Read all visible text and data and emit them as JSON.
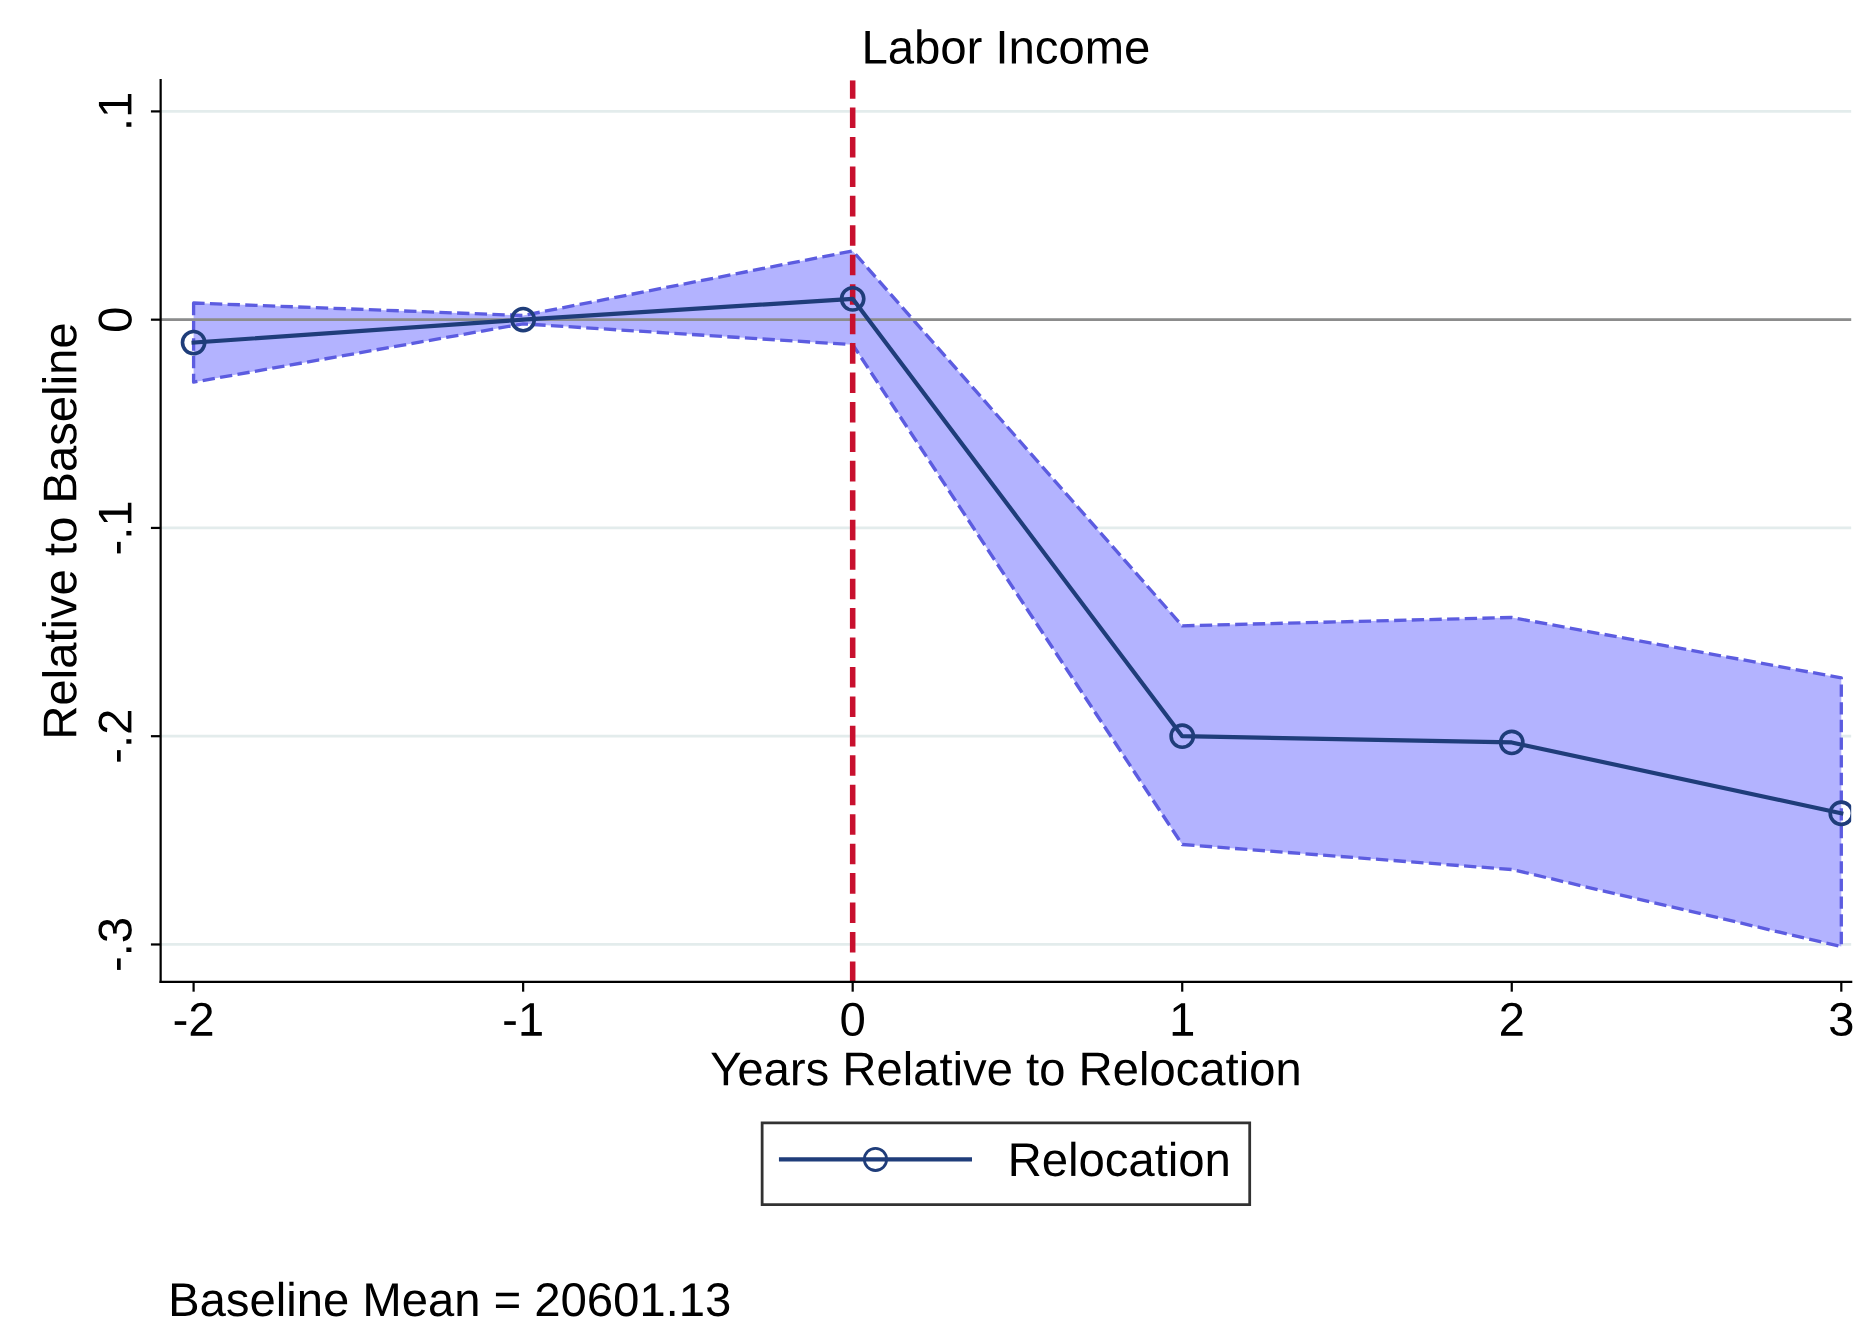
{
  "chart_data": {
    "type": "line",
    "title": "Labor Income",
    "xlabel": "Years Relative to Relocation",
    "ylabel": "Relative to Baseline",
    "x": [
      -2,
      -1,
      0,
      1,
      2,
      3
    ],
    "series": [
      {
        "name": "Relocation",
        "color": "#1f3d7a",
        "values": [
          -0.011,
          0,
          0.01,
          -0.2,
          -0.203,
          -0.237
        ],
        "lower": [
          -0.03,
          -0.002,
          -0.012,
          -0.252,
          -0.264,
          -0.301
        ],
        "upper": [
          0.008,
          0.002,
          0.033,
          -0.147,
          -0.143,
          -0.172
        ]
      }
    ],
    "xlim": [
      -2.1,
      3.03
    ],
    "ylim": [
      -0.318,
      0.115
    ],
    "xticks": [
      -2,
      -1,
      0,
      1,
      2,
      3
    ],
    "yticks": [
      {
        "value": -0.3,
        "label": "-.3"
      },
      {
        "value": -0.2,
        "label": "-.2"
      },
      {
        "value": -0.1,
        "label": "-.1"
      },
      {
        "value": 0,
        "label": "0"
      },
      {
        "value": 0.1,
        "label": ".1"
      }
    ],
    "ref_lines": [
      {
        "axis": "y",
        "value": 0,
        "color": "#8c8c8c",
        "line_style": "solid"
      },
      {
        "axis": "x",
        "value": 0,
        "color": "#c8102e",
        "line_style": "dashed"
      }
    ],
    "grid": "y",
    "legend": "bottom",
    "marker": "circle",
    "line_style": "solid",
    "annotations": [
      "Baseline Mean = 20601.13"
    ]
  }
}
